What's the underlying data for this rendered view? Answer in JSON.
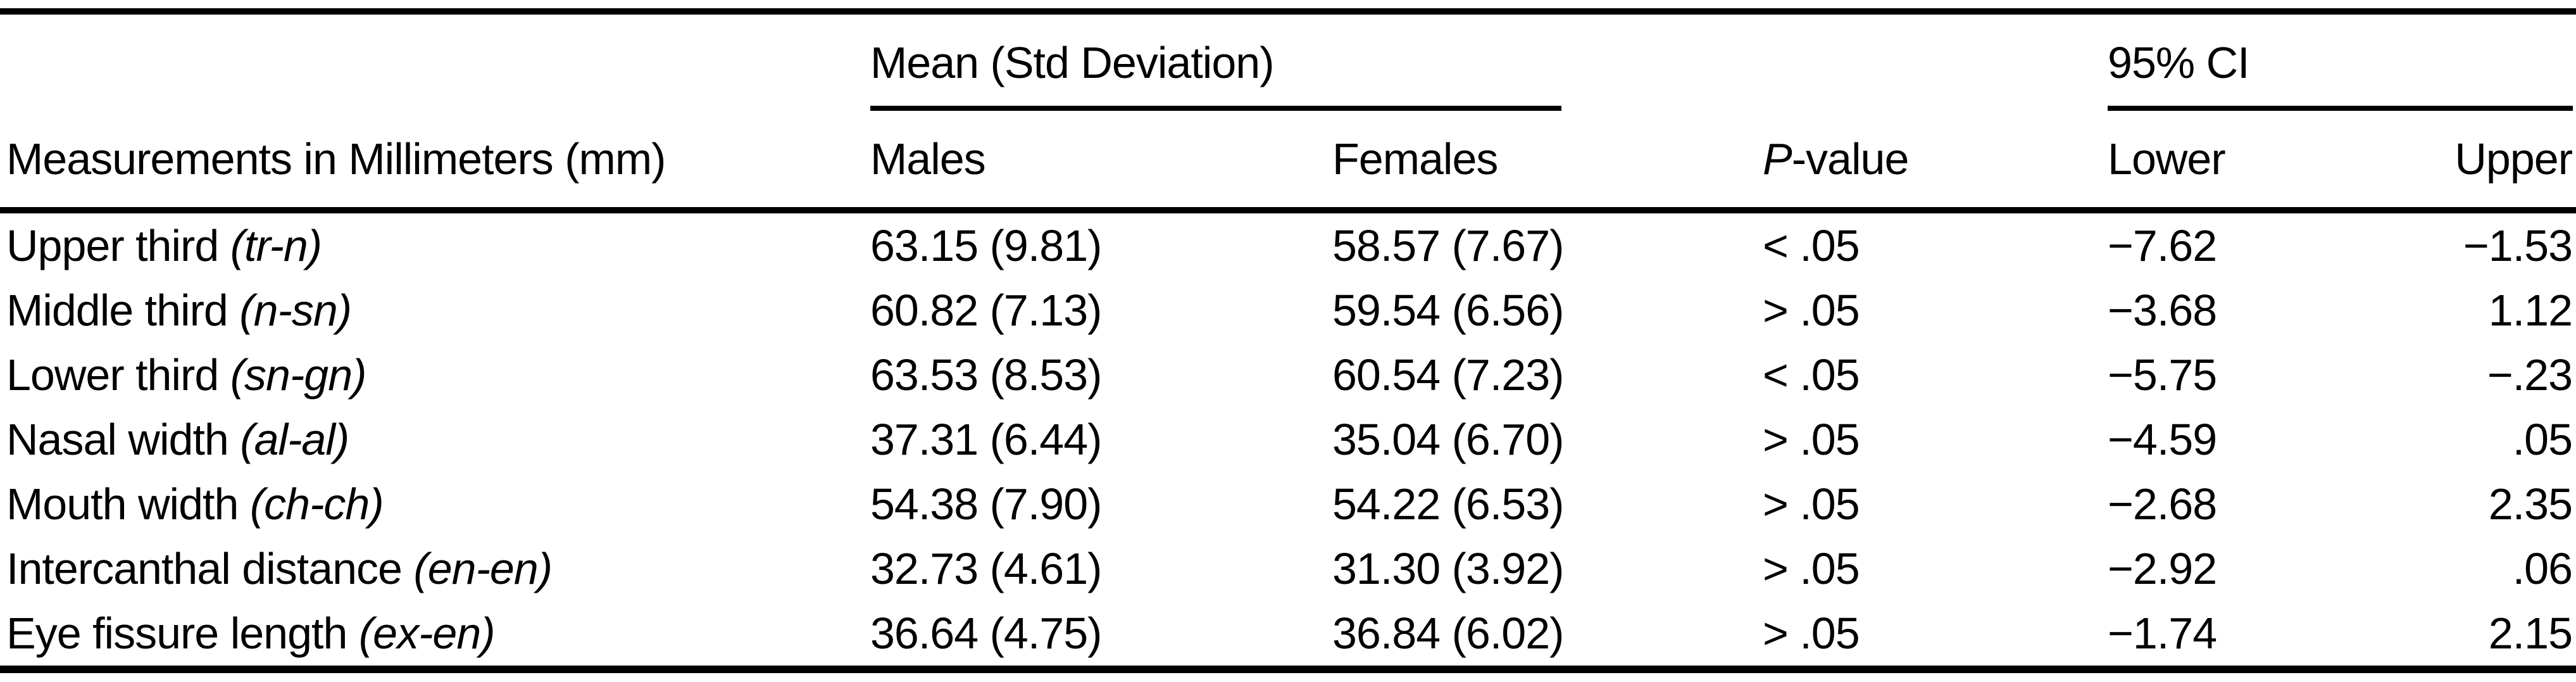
{
  "table": {
    "column1_header": "Measurements in Millimeters (mm)",
    "group_header_mean_sd": "Mean (Std Deviation)",
    "group_header_ci": "95% CI",
    "col_males": "Males",
    "col_females": "Females",
    "col_pvalue_italic": "P",
    "col_pvalue_rest": "-value",
    "col_lower": "Lower",
    "col_upper": "Upper",
    "rows": [
      {
        "label": "Upper third",
        "code": "(tr-n)",
        "males": "63.15 (9.81)",
        "females": "58.57 (7.67)",
        "p": "< .05",
        "lower": "−7.62",
        "upper": "−1.53"
      },
      {
        "label": "Middle third",
        "code": "(n-sn)",
        "males": "60.82 (7.13)",
        "females": "59.54 (6.56)",
        "p": "> .05",
        "lower": "−3.68",
        "upper": "1.12"
      },
      {
        "label": "Lower third",
        "code": "(sn-gn)",
        "males": "63.53 (8.53)",
        "females": "60.54 (7.23)",
        "p": "< .05",
        "lower": "−5.75",
        "upper": "−.23"
      },
      {
        "label": "Nasal width",
        "code": "(al-al)",
        "males": "37.31 (6.44)",
        "females": "35.04 (6.70)",
        "p": "> .05",
        "lower": "−4.59",
        "upper": ".05"
      },
      {
        "label": "Mouth width",
        "code": "(ch-ch)",
        "males": "54.38 (7.90)",
        "females": "54.22 (6.53)",
        "p": "> .05",
        "lower": "−2.68",
        "upper": "2.35"
      },
      {
        "label": "Intercanthal distance",
        "code": "(en-en)",
        "males": "32.73 (4.61)",
        "females": "31.30 (3.92)",
        "p": "> .05",
        "lower": "−2.92",
        "upper": ".06"
      },
      {
        "label": "Eye fissure length",
        "code": "(ex-en)",
        "males": "36.64 (4.75)",
        "females": "36.84 (6.02)",
        "p": "> .05",
        "lower": "−1.74",
        "upper": "2.15"
      }
    ]
  }
}
